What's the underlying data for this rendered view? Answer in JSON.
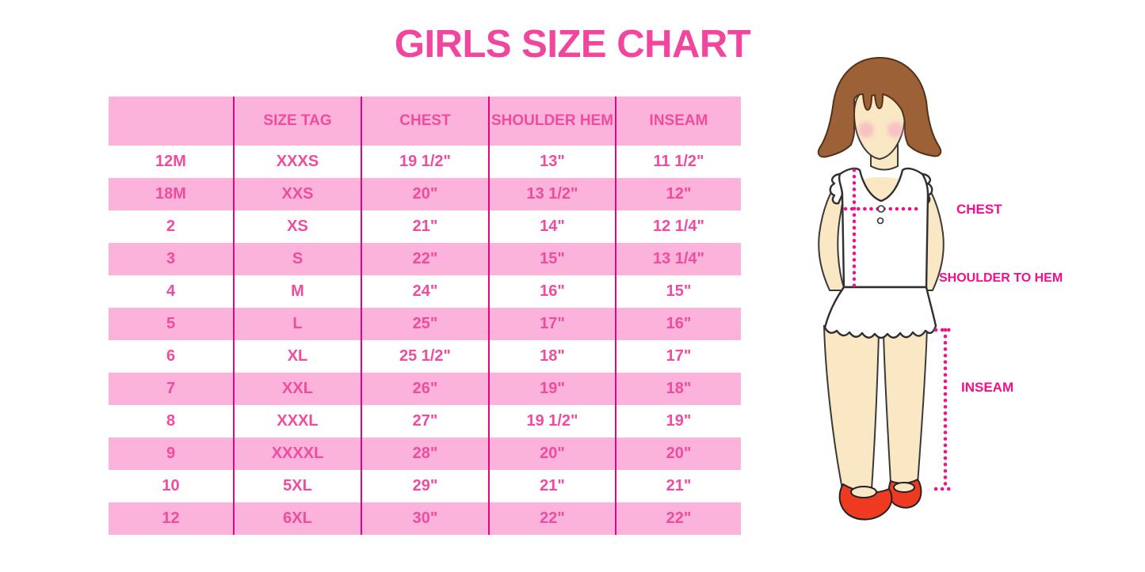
{
  "title": "GIRLS SIZE CHART",
  "colors": {
    "title_pink": "#F2459E",
    "header_text": "#EF4CA0",
    "cell_text": "#EF4CA0",
    "row_pink": "#FBB3DB",
    "divider": "#E3067F",
    "label_magenta": "#F0108E",
    "dotted_line": "#F0108E",
    "hair_brown": "#9C6136",
    "skin": "#FAE7C4",
    "cheek": "#F5AEC2",
    "shoe_red": "#EE3A21"
  },
  "table": {
    "columns": [
      "",
      "SIZE TAG",
      "CHEST",
      "SHOULDER HEM",
      "INSEAM"
    ],
    "rows": [
      [
        "12M",
        "XXXS",
        "19 1/2\"",
        "13\"",
        "11 1/2\""
      ],
      [
        "18M",
        "XXS",
        "20\"",
        "13 1/2\"",
        "12\""
      ],
      [
        "2",
        "XS",
        "21\"",
        "14\"",
        "12 1/4\""
      ],
      [
        "3",
        "S",
        "22\"",
        "15\"",
        "13 1/4\""
      ],
      [
        "4",
        "M",
        "24\"",
        "16\"",
        "15\""
      ],
      [
        "5",
        "L",
        "25\"",
        "17\"",
        "16\""
      ],
      [
        "6",
        "XL",
        "25 1/2\"",
        "18\"",
        "17\""
      ],
      [
        "7",
        "XXL",
        "26\"",
        "19\"",
        "18\""
      ],
      [
        "8",
        "XXXL",
        "27\"",
        "19 1/2\"",
        "19\""
      ],
      [
        "9",
        "XXXXL",
        "28\"",
        "20\"",
        "20\""
      ],
      [
        "10",
        "5XL",
        "29\"",
        "21\"",
        "21\""
      ],
      [
        "12",
        "6XL",
        "30\"",
        "22\"",
        "22\""
      ]
    ]
  },
  "figure": {
    "labels": {
      "chest": "CHEST",
      "shoulder_to_hem": "SHOULDER TO HEM",
      "inseam": "INSEAM"
    }
  }
}
